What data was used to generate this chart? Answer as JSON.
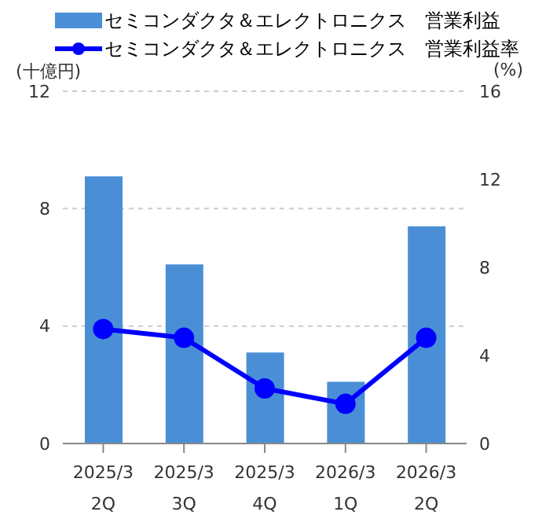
{
  "chart_data": {
    "type": "bar",
    "categories": [
      "2025/3\n2Q",
      "2025/3\n3Q",
      "2025/3\n4Q",
      "2026/3\n1Q",
      "2026/3\n2Q"
    ],
    "series": [
      {
        "name": "セミコンダクタ＆エレクトロニクス　営業利益",
        "color": "#4a8fd6",
        "values": [
          9.1,
          6.1,
          3.1,
          2.1,
          7.4
        ]
      },
      {
        "name": "セミコンダクタ＆エレクトロニクス　営業利益率",
        "type": "line",
        "axis": "y2",
        "color": "#0000ff",
        "values": [
          5.2,
          4.8,
          2.5,
          1.8,
          4.8
        ]
      }
    ],
    "ylabel": "(十億円)",
    "y2label": "(%)",
    "ylim": [
      0,
      12
    ],
    "yticks": [
      0,
      4,
      8,
      12
    ],
    "y2lim": [
      0,
      16
    ],
    "y2ticks": [
      0,
      4,
      8,
      12,
      16
    ],
    "grid": "y",
    "legend": "top",
    "marker": "circle",
    "line_style": "solid"
  }
}
